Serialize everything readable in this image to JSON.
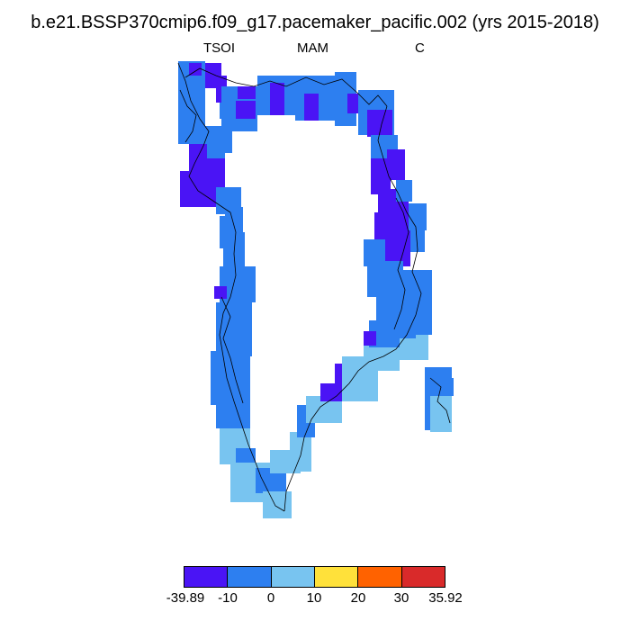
{
  "title": "b.e21.BSSP370cmip6.f09_g17.pacemaker_pacific.002 (yrs 2015-2018)",
  "subtitle": {
    "left": "TSOI",
    "center": "MAM",
    "right": "C"
  },
  "colors": {
    "bin1": "#4a14f5",
    "bin2": "#2d7ff0",
    "bin3": "#78c4f0",
    "bin4": "#ffe13a",
    "bin5": "#ff6200",
    "bin6": "#d92a2a",
    "coast": "#000000"
  },
  "colorbar": {
    "swatches": [
      "#4a14f5",
      "#2d7ff0",
      "#78c4f0",
      "#ffe13a",
      "#ff6200",
      "#d92a2a"
    ],
    "labels": [
      "-39.89",
      "-10",
      "0",
      "10",
      "20",
      "30",
      "35.92"
    ]
  }
}
